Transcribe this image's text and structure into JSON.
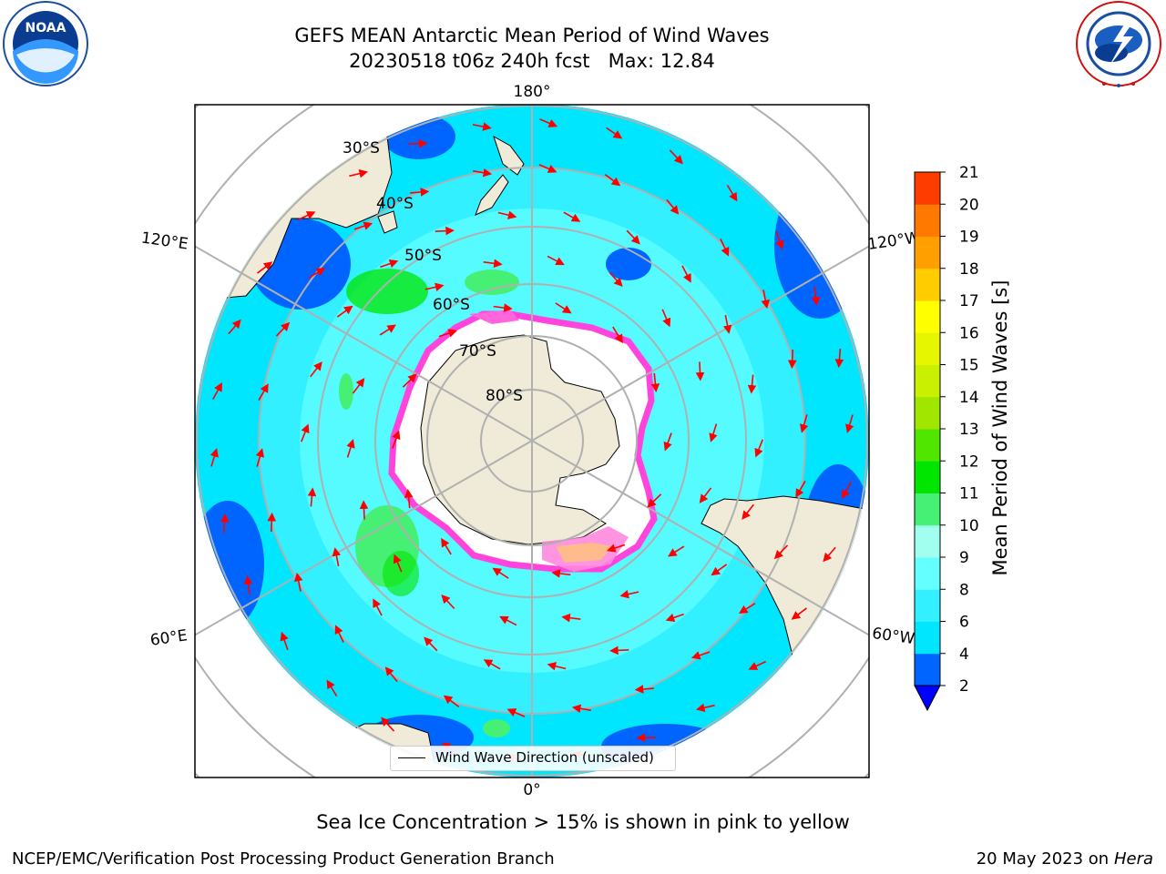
{
  "title": {
    "line1": "GEFS MEAN Antarctic Mean Period of Wind Waves",
    "line2": "20230518 t06z 240h fcst   Max: 12.84"
  },
  "logos": {
    "noaa": {
      "text": "NOAA",
      "ring": "NATIONAL OCEANIC AND ATMOSPHERIC ADMINISTRATION · U.S. DEPARTMENT OF COMMERCE"
    },
    "nws": {
      "ring": "NATIONAL WEATHER SERVICE"
    }
  },
  "map": {
    "longitude_labels": [
      "180°",
      "120°E",
      "120°W",
      "60°E",
      "60°W",
      "0°"
    ],
    "latitude_labels": [
      "30°S",
      "40°S",
      "50°S",
      "60°S",
      "70°S",
      "80°S"
    ],
    "legend": "Wind Wave Direction (unscaled)"
  },
  "colorbar": {
    "title": "Mean Period of Wind Waves [s]",
    "ticks": [
      "2",
      "4",
      "6",
      "8",
      "9",
      "10",
      "11",
      "12",
      "13",
      "14",
      "15",
      "16",
      "17",
      "18",
      "19",
      "20",
      "21"
    ],
    "colors": [
      "#0064ff",
      "#00e6ff",
      "#32f0ff",
      "#64ffff",
      "#a0ffef",
      "#46f074",
      "#00e600",
      "#50e600",
      "#a0e600",
      "#c8f000",
      "#e6f500",
      "#ffff00",
      "#ffcc00",
      "#ffa000",
      "#ff7800",
      "#ff3c00",
      "#ff0000"
    ],
    "under_color": "#0000ff"
  },
  "colors": {
    "land": "#efebd8",
    "sea_ice": "#ff44dd",
    "ice_white": "#ffffff",
    "arrow": "#ff0000",
    "grid": "#b0b0b0"
  },
  "footer": {
    "caption": "Sea Ice Concentration > 15% is shown in pink to yellow",
    "left": "NCEP/EMC/Verification Post Processing Product Generation Branch",
    "date": "20 May 2023 on",
    "machine": "Hera"
  }
}
